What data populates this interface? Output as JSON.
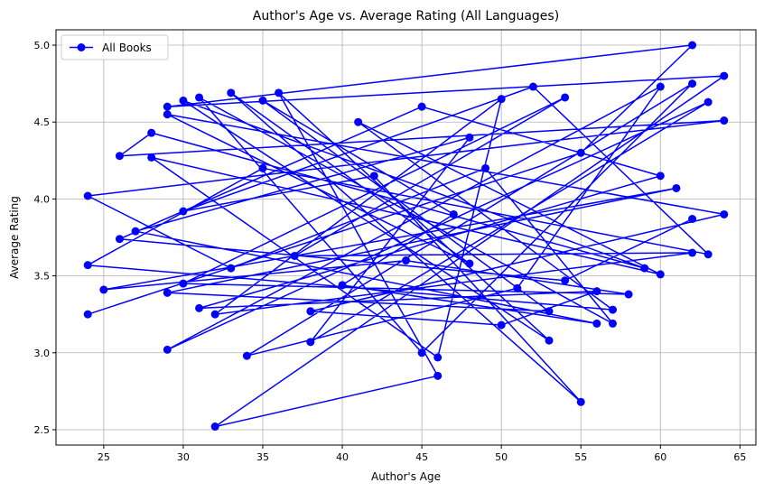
{
  "chart_data": {
    "type": "line",
    "title": "Author's Age vs. Average Rating (All Languages)",
    "xlabel": "Author's Age",
    "ylabel": "Average Rating",
    "xlim": [
      22.0,
      66.0
    ],
    "ylim": [
      2.4,
      5.1
    ],
    "xticks": [
      25,
      30,
      35,
      40,
      45,
      50,
      55,
      60,
      65
    ],
    "yticks": [
      2.5,
      3.0,
      3.5,
      4.0,
      4.5,
      5.0
    ],
    "grid": true,
    "legend_position": "upper-left",
    "color": "#0000ff",
    "series": [
      {
        "name": "All Books",
        "x": [
          24,
          55,
          62,
          29,
          64,
          32,
          46,
          36,
          53,
          30,
          59,
          28,
          26,
          64,
          24,
          33,
          49,
          57,
          31,
          45,
          62,
          34,
          51,
          60,
          29,
          63,
          38,
          48,
          27,
          56,
          40,
          47,
          35,
          53,
          29,
          61,
          25,
          44,
          58,
          30,
          54,
          37,
          62,
          32,
          50,
          46,
          28,
          60,
          41,
          57,
          24,
          35,
          63,
          52,
          30,
          42,
          55,
          33,
          48,
          29,
          64,
          38,
          50,
          56,
          31,
          60,
          45,
          26,
          54,
          62
        ],
        "y": [
          3.25,
          4.3,
          5.0,
          4.6,
          4.8,
          2.52,
          2.85,
          4.69,
          3.08,
          4.64,
          3.55,
          4.43,
          4.28,
          4.51,
          4.02,
          3.55,
          4.2,
          3.19,
          4.66,
          3.0,
          4.75,
          2.98,
          3.42,
          4.73,
          3.02,
          4.63,
          3.07,
          4.4,
          3.79,
          3.19,
          3.44,
          3.9,
          4.64,
          3.27,
          3.39,
          4.07,
          3.41,
          3.6,
          3.38,
          3.45,
          4.66,
          3.63,
          3.65,
          3.25,
          4.65,
          2.97,
          4.27,
          3.51,
          4.5,
          3.28,
          3.57,
          4.2,
          3.64,
          4.73,
          3.92,
          4.15,
          2.68,
          4.69,
          3.58,
          4.55,
          3.9,
          3.27,
          3.18,
          3.4,
          3.29,
          4.15,
          4.6,
          3.74,
          3.47,
          3.87
        ]
      }
    ]
  }
}
